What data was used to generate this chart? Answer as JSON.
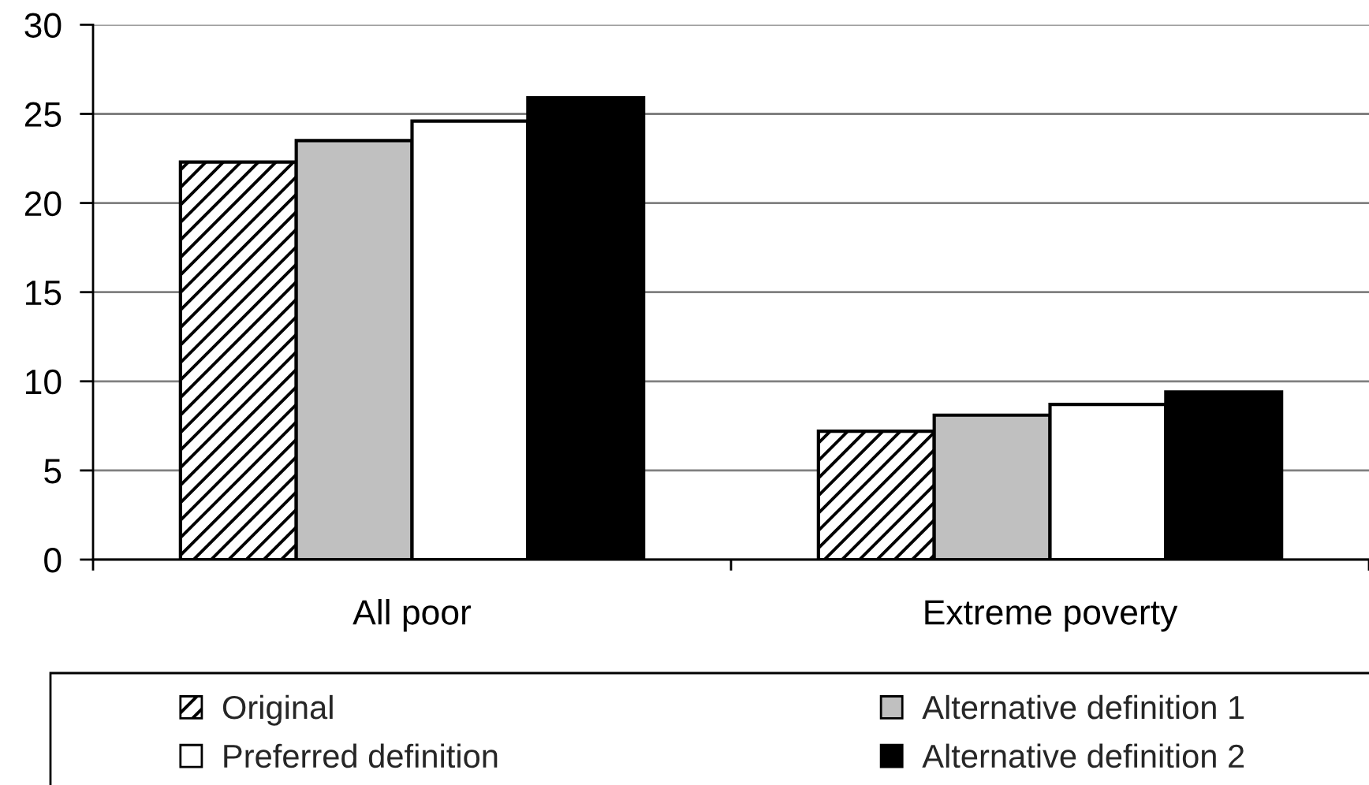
{
  "chart_data": {
    "type": "bar",
    "categories": [
      "All poor",
      "Extreme poverty"
    ],
    "series": [
      {
        "name": "Original",
        "color": "#000000",
        "values": [
          22.3,
          7.2
        ]
      },
      {
        "name": "Alternative definition 1",
        "color": "#c0c0c0",
        "values": [
          23.5,
          8.1
        ]
      },
      {
        "name": "Preferred definition",
        "color": "#ffffff",
        "values": [
          24.6,
          8.7
        ]
      },
      {
        "name": "Alternative definition 2",
        "color": "#000000",
        "values": [
          25.9,
          9.4
        ]
      }
    ],
    "ylim": [
      0,
      30
    ],
    "yticks": [
      0,
      5,
      10,
      15,
      20,
      25,
      30
    ],
    "grid": "y",
    "legend": "bottom"
  }
}
